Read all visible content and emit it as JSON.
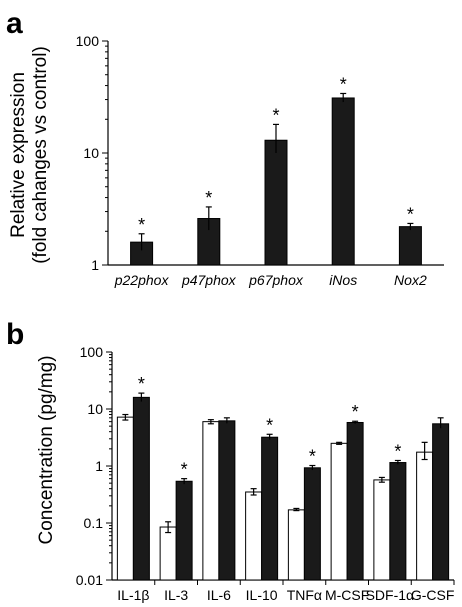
{
  "panels": {
    "a": {
      "letter": "a"
    },
    "b": {
      "letter": "b"
    }
  },
  "chart_data": [
    {
      "type": "bar",
      "scale": "log",
      "ylabel_line1": "Relative expression",
      "ylabel_line2": "(fold cahanges vs control)",
      "ylim": [
        1,
        100
      ],
      "yticks": [
        "1",
        "10",
        "100"
      ],
      "categories": [
        "p22phox",
        "p47phox",
        "p67phox",
        "iNos",
        "Nox2"
      ],
      "series": [
        {
          "fill": "#1a1a1a",
          "values": [
            1.6,
            2.6,
            13,
            31,
            2.2
          ],
          "err_low": [
            1.35,
            2.05,
            10,
            28.5,
            2.05
          ],
          "err_high": [
            1.9,
            3.3,
            18,
            34,
            2.35
          ],
          "significant": [
            "*",
            "*",
            "*",
            "*",
            "*"
          ]
        }
      ]
    },
    {
      "type": "bar",
      "scale": "log",
      "ylabel": "Concentration (pg/mg)",
      "ylim": [
        0.01,
        100
      ],
      "yticks": [
        "0.01",
        "0.1",
        "1",
        "10",
        "100"
      ],
      "categories": [
        "IL-1β",
        "IL-3",
        "IL-6",
        "IL-10",
        "TNFα",
        "M-CSF",
        "SDF-1α",
        "G-CSF"
      ],
      "series": [
        {
          "fill": "#ffffff",
          "values": [
            7.2,
            0.085,
            6.0,
            0.35,
            0.17,
            2.5,
            0.57,
            1.75
          ],
          "err_low": [
            6.4,
            0.068,
            5.5,
            0.31,
            0.165,
            2.4,
            0.52,
            1.3
          ],
          "err_high": [
            8.0,
            0.105,
            6.5,
            0.4,
            0.18,
            2.6,
            0.63,
            2.6
          ],
          "significant": [
            "",
            "",
            "",
            "",
            "",
            "",
            "",
            ""
          ]
        },
        {
          "fill": "#1a1a1a",
          "values": [
            16,
            0.54,
            6.2,
            3.2,
            0.93,
            5.8,
            1.15,
            5.5
          ],
          "err_low": [
            13.5,
            0.48,
            5.6,
            2.9,
            0.85,
            5.5,
            1.07,
            4.6
          ],
          "err_high": [
            19,
            0.6,
            7.0,
            3.6,
            1.02,
            6.1,
            1.25,
            7.0
          ],
          "significant": [
            "*",
            "*",
            "",
            "*",
            "*",
            "*",
            "*",
            ""
          ]
        }
      ]
    }
  ]
}
